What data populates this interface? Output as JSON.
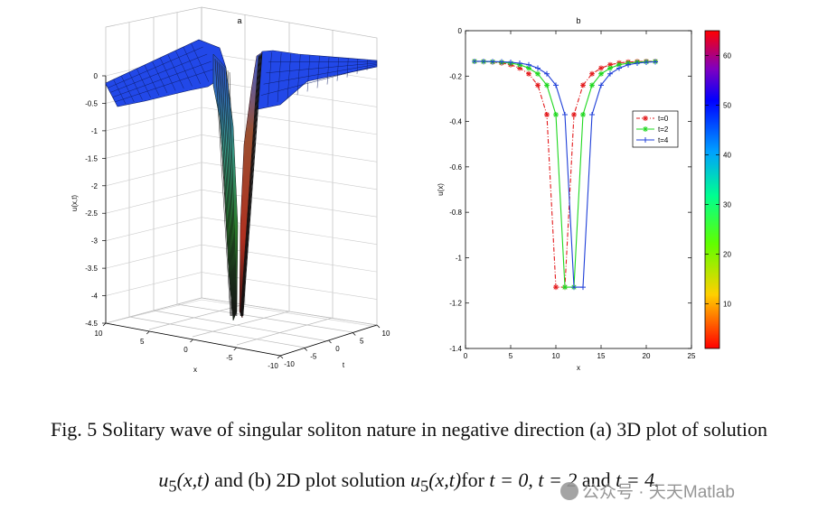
{
  "figure": {
    "panel_a_title": "a",
    "panel_b_title": "b",
    "caption_line1": "Fig. 5 Solitary wave of singular soliton nature in negative direction (a) 3D plot of solution",
    "caption_line2": {
      "u": "u",
      "sub": "5",
      "args": "(x,t)",
      "text1": "and (b) 2D plot solution",
      "text2": "for",
      "t0": "t = 0",
      "t2": "t = 2",
      "and": "and",
      "t4": "t = 4."
    },
    "watermark": "公众号 · 天天Matlab"
  },
  "chart_data": [
    {
      "type": "surface",
      "title": "a",
      "xlabel": "x",
      "ylabel": "t",
      "zlabel": "u(x,t)",
      "x_ticks": [
        "10",
        "5",
        "0",
        "-5",
        "-10"
      ],
      "t_ticks": [
        "-10",
        "-5",
        "0",
        "5",
        "10"
      ],
      "z_ticks": [
        "0",
        "-0.5",
        "-1",
        "-1.5",
        "-2",
        "-2.5",
        "-3",
        "-3.5",
        "-4",
        "-4.5"
      ],
      "xlim": [
        -10,
        10
      ],
      "tlim": [
        -10,
        10
      ],
      "zlim": [
        -4.5,
        0.5
      ],
      "grid": true,
      "colormap": "jet",
      "description_values": {
        "plateau": -0.15,
        "minimum": -4.4
      }
    },
    {
      "type": "line",
      "title": "b",
      "xlabel": "x",
      "ylabel": "u(x)",
      "xlim": [
        0,
        25
      ],
      "ylim": [
        -1.4,
        0
      ],
      "x_ticks": [
        "0",
        "5",
        "10",
        "15",
        "20",
        "25"
      ],
      "y_ticks": [
        "0",
        "-0.2",
        "-0.4",
        "-0.6",
        "-0.8",
        "-1",
        "-1.2",
        "-1.4"
      ],
      "legend_position": "right",
      "series": [
        {
          "name": "t=0",
          "color": "#e31a1c",
          "style": "dash-dot",
          "marker": "star",
          "x": [
            1,
            2,
            3,
            4,
            5,
            6,
            7,
            8,
            9,
            10,
            11,
            12,
            13,
            14,
            15,
            16,
            17,
            18,
            19,
            20,
            21
          ],
          "y": [
            -0.135,
            -0.136,
            -0.138,
            -0.142,
            -0.15,
            -0.165,
            -0.19,
            -0.24,
            -0.37,
            -1.13,
            -1.13,
            -0.37,
            -0.24,
            -0.19,
            -0.165,
            -0.15,
            -0.142,
            -0.138,
            -0.136,
            -0.135,
            -0.135
          ]
        },
        {
          "name": "t=2",
          "color": "#1fd81f",
          "style": "solid",
          "marker": "star",
          "x": [
            1,
            2,
            3,
            4,
            5,
            6,
            7,
            8,
            9,
            10,
            11,
            12,
            13,
            14,
            15,
            16,
            17,
            18,
            19,
            20,
            21
          ],
          "y": [
            -0.135,
            -0.136,
            -0.137,
            -0.139,
            -0.143,
            -0.15,
            -0.165,
            -0.19,
            -0.24,
            -0.37,
            -1.13,
            -1.13,
            -0.37,
            -0.24,
            -0.19,
            -0.165,
            -0.15,
            -0.143,
            -0.139,
            -0.137,
            -0.136
          ]
        },
        {
          "name": "t=4",
          "color": "#1f3fd8",
          "style": "solid",
          "marker": "plus",
          "x": [
            1,
            2,
            3,
            4,
            5,
            6,
            7,
            8,
            9,
            10,
            11,
            12,
            13,
            14,
            15,
            16,
            17,
            18,
            19,
            20,
            21
          ],
          "y": [
            -0.135,
            -0.135,
            -0.136,
            -0.137,
            -0.139,
            -0.143,
            -0.15,
            -0.165,
            -0.19,
            -0.24,
            -0.37,
            -1.13,
            -1.13,
            -0.37,
            -0.24,
            -0.19,
            -0.165,
            -0.15,
            -0.143,
            -0.139,
            -0.137
          ]
        }
      ]
    },
    {
      "type": "colorbar",
      "colormap": "jet",
      "ticks": [
        "60",
        "50",
        "40",
        "30",
        "20",
        "10"
      ],
      "range": [
        1,
        65
      ]
    }
  ]
}
